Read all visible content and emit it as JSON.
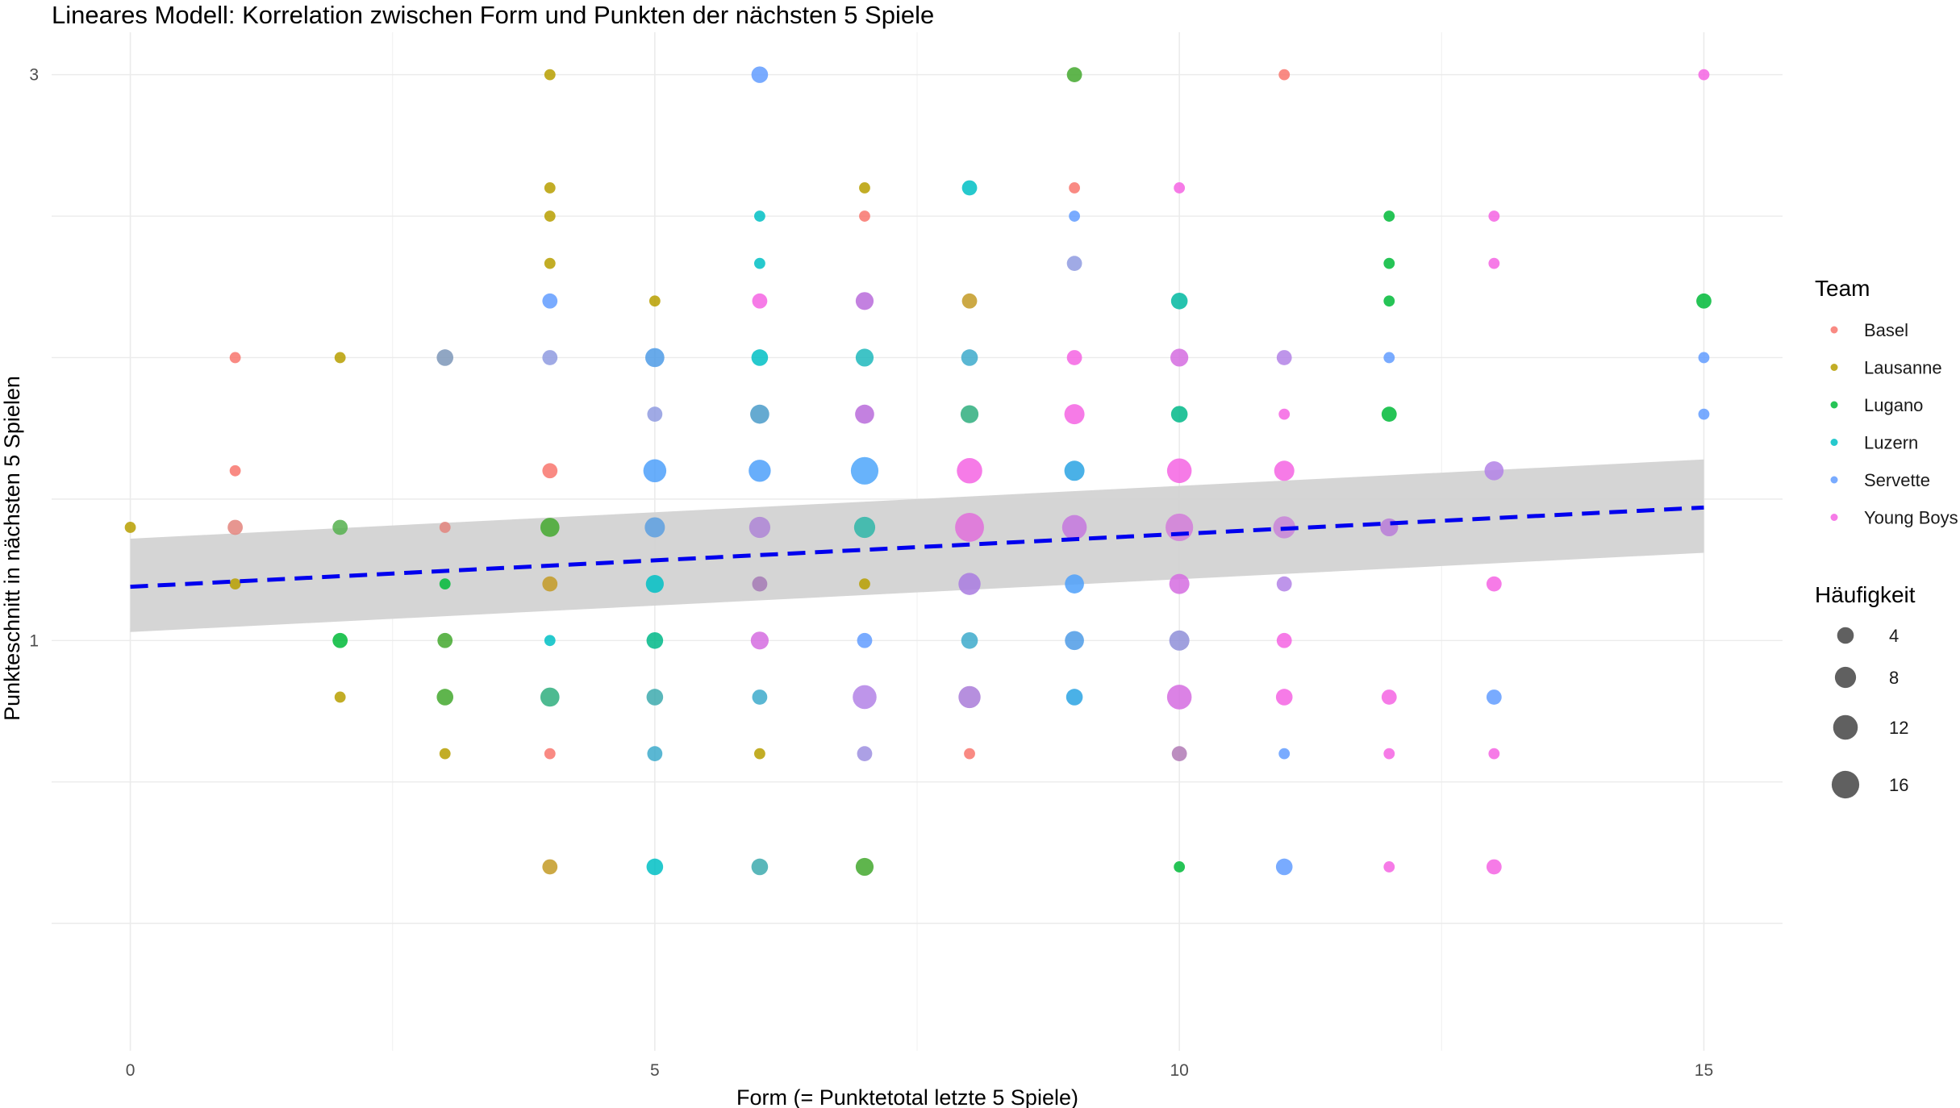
{
  "chart_data": {
    "type": "scatter",
    "title": "Lineares Modell: Korrelation zwischen Form und Punkten der nächsten 5 Spiele",
    "xlabel": "Form (= Punktetotal letzte 5 Spiele)",
    "ylabel": "Punkteschnitt in nächsten 5 Spielen",
    "xlim": [
      -0.75,
      15.75
    ],
    "ylim": [
      -0.45,
      3.15
    ],
    "xticks": [
      {
        "v": 0,
        "label": "0"
      },
      {
        "v": 5,
        "label": "5"
      },
      {
        "v": 10,
        "label": "10"
      },
      {
        "v": 15,
        "label": "15"
      }
    ],
    "yticks": [
      {
        "v": 1,
        "label": "1"
      },
      {
        "v": 3,
        "label": "3"
      }
    ],
    "x_minor_grid": [
      2.5,
      7.5,
      12.5
    ],
    "y_grid": [
      -0.5,
      0,
      0.5,
      1,
      1.5,
      2,
      2.5,
      3
    ],
    "grid": true,
    "legend_position": "right",
    "team_legend": {
      "title": "Team",
      "entries": [
        {
          "name": "Basel",
          "color": "#F8766D"
        },
        {
          "name": "Lausanne",
          "color": "#B79F00"
        },
        {
          "name": "Lugano",
          "color": "#00BA38"
        },
        {
          "name": "Luzern",
          "color": "#00BFC4"
        },
        {
          "name": "Servette",
          "color": "#619CFF"
        },
        {
          "name": "Young Boys",
          "color": "#F564E3"
        }
      ]
    },
    "size_legend": {
      "title": "Häufigkeit",
      "entries": [
        {
          "value": 4,
          "label": "4"
        },
        {
          "value": 8,
          "label": "8"
        },
        {
          "value": 12,
          "label": "12"
        },
        {
          "value": 16,
          "label": "16"
        }
      ]
    },
    "regression": {
      "x": [
        0,
        15
      ],
      "y": [
        1.19,
        1.47
      ],
      "ci_lower": [
        1.03,
        1.31
      ],
      "ci_upper": [
        1.36,
        1.64
      ],
      "line_color": "#0000EE",
      "band_color": "#d3d3d3"
    },
    "points": [
      {
        "x": 4,
        "y": 3.0,
        "n": 1,
        "color": "#B79F00"
      },
      {
        "x": 6,
        "y": 3.0,
        "n": 4,
        "color": "#619CFF"
      },
      {
        "x": 9,
        "y": 3.0,
        "n": 3,
        "color": "#43A82E"
      },
      {
        "x": 11,
        "y": 3.0,
        "n": 1,
        "color": "#F8766D"
      },
      {
        "x": 15,
        "y": 3.0,
        "n": 1,
        "color": "#F564E3"
      },
      {
        "x": 4,
        "y": 2.6,
        "n": 1,
        "color": "#B79F00"
      },
      {
        "x": 7,
        "y": 2.6,
        "n": 1,
        "color": "#B79F00"
      },
      {
        "x": 8,
        "y": 2.6,
        "n": 3,
        "color": "#00BFC4"
      },
      {
        "x": 9,
        "y": 2.6,
        "n": 1,
        "color": "#F8766D"
      },
      {
        "x": 10,
        "y": 2.6,
        "n": 1,
        "color": "#F564E3"
      },
      {
        "x": 4,
        "y": 2.5,
        "n": 1,
        "color": "#B79F00"
      },
      {
        "x": 6,
        "y": 2.5,
        "n": 1,
        "color": "#00BFC4"
      },
      {
        "x": 7,
        "y": 2.5,
        "n": 1,
        "color": "#F8766D"
      },
      {
        "x": 9,
        "y": 2.5,
        "n": 1,
        "color": "#619CFF"
      },
      {
        "x": 12,
        "y": 2.5,
        "n": 1,
        "color": "#00BA38"
      },
      {
        "x": 13,
        "y": 2.5,
        "n": 1,
        "color": "#F564E3"
      },
      {
        "x": 4,
        "y": 2.333,
        "n": 1,
        "color": "#B79F00"
      },
      {
        "x": 6,
        "y": 2.333,
        "n": 1,
        "color": "#00BFC4"
      },
      {
        "x": 9,
        "y": 2.333,
        "n": 3,
        "color": "#8F9BE0"
      },
      {
        "x": 12,
        "y": 2.333,
        "n": 1,
        "color": "#00BA38"
      },
      {
        "x": 13,
        "y": 2.333,
        "n": 1,
        "color": "#F564E3"
      },
      {
        "x": 4,
        "y": 2.2,
        "n": 3,
        "color": "#619CFF"
      },
      {
        "x": 5,
        "y": 2.2,
        "n": 1,
        "color": "#B79F00"
      },
      {
        "x": 6,
        "y": 2.2,
        "n": 3,
        "color": "#F564E3"
      },
      {
        "x": 7,
        "y": 2.2,
        "n": 5,
        "color": "#B86BDB"
      },
      {
        "x": 8,
        "y": 2.2,
        "n": 3,
        "color": "#C39A25"
      },
      {
        "x": 10,
        "y": 2.2,
        "n": 4,
        "color": "#00B8A0"
      },
      {
        "x": 12,
        "y": 2.2,
        "n": 1,
        "color": "#00BA38"
      },
      {
        "x": 15,
        "y": 2.2,
        "n": 3,
        "color": "#00BA38"
      },
      {
        "x": 1,
        "y": 2.0,
        "n": 1,
        "color": "#F8766D"
      },
      {
        "x": 2,
        "y": 2.0,
        "n": 1,
        "color": "#B79F00"
      },
      {
        "x": 3,
        "y": 2.0,
        "n": 4,
        "color": "#7C96B8"
      },
      {
        "x": 4,
        "y": 2.0,
        "n": 3,
        "color": "#8F9BE0"
      },
      {
        "x": 5,
        "y": 2.0,
        "n": 6,
        "color": "#4D9BE6"
      },
      {
        "x": 6,
        "y": 2.0,
        "n": 4,
        "color": "#00BFC4"
      },
      {
        "x": 7,
        "y": 2.0,
        "n": 5,
        "color": "#1FB8BC"
      },
      {
        "x": 8,
        "y": 2.0,
        "n": 4,
        "color": "#3DAACB"
      },
      {
        "x": 9,
        "y": 2.0,
        "n": 3,
        "color": "#F564E3"
      },
      {
        "x": 10,
        "y": 2.0,
        "n": 5,
        "color": "#D56CE0"
      },
      {
        "x": 11,
        "y": 2.0,
        "n": 3,
        "color": "#B383E6"
      },
      {
        "x": 12,
        "y": 2.0,
        "n": 1,
        "color": "#619CFF"
      },
      {
        "x": 15,
        "y": 2.0,
        "n": 1,
        "color": "#619CFF"
      },
      {
        "x": 5,
        "y": 1.8,
        "n": 3,
        "color": "#8F9BE0"
      },
      {
        "x": 6,
        "y": 1.8,
        "n": 6,
        "color": "#4A9BC9"
      },
      {
        "x": 7,
        "y": 1.8,
        "n": 6,
        "color": "#B86BDB"
      },
      {
        "x": 8,
        "y": 1.8,
        "n": 5,
        "color": "#2FAE7E"
      },
      {
        "x": 9,
        "y": 1.8,
        "n": 7,
        "color": "#F564E3"
      },
      {
        "x": 10,
        "y": 1.8,
        "n": 4,
        "color": "#00B888"
      },
      {
        "x": 11,
        "y": 1.8,
        "n": 1,
        "color": "#F564E3"
      },
      {
        "x": 12,
        "y": 1.8,
        "n": 3,
        "color": "#00BA38"
      },
      {
        "x": 15,
        "y": 1.8,
        "n": 1,
        "color": "#619CFF"
      },
      {
        "x": 1,
        "y": 1.6,
        "n": 1,
        "color": "#F8766D"
      },
      {
        "x": 4,
        "y": 1.6,
        "n": 3,
        "color": "#F8766D"
      },
      {
        "x": 5,
        "y": 1.6,
        "n": 10,
        "color": "#4DA0FA"
      },
      {
        "x": 6,
        "y": 1.6,
        "n": 9,
        "color": "#4DA0FA"
      },
      {
        "x": 7,
        "y": 1.6,
        "n": 16,
        "color": "#4DA6FA"
      },
      {
        "x": 8,
        "y": 1.6,
        "n": 13,
        "color": "#F564E3"
      },
      {
        "x": 9,
        "y": 1.6,
        "n": 7,
        "color": "#2AA3E3"
      },
      {
        "x": 10,
        "y": 1.6,
        "n": 12,
        "color": "#F564E3"
      },
      {
        "x": 11,
        "y": 1.6,
        "n": 7,
        "color": "#F564E3"
      },
      {
        "x": 13,
        "y": 1.6,
        "n": 6,
        "color": "#B383E6"
      },
      {
        "x": 0,
        "y": 1.4,
        "n": 1,
        "color": "#B79F00"
      },
      {
        "x": 1,
        "y": 1.4,
        "n": 3,
        "color": "#E3847C"
      },
      {
        "x": 2,
        "y": 1.4,
        "n": 3,
        "color": "#55B04E"
      },
      {
        "x": 3,
        "y": 1.4,
        "n": 1,
        "color": "#E3847C"
      },
      {
        "x": 4,
        "y": 1.4,
        "n": 6,
        "color": "#43A82E"
      },
      {
        "x": 5,
        "y": 1.4,
        "n": 7,
        "color": "#5C9FE0"
      },
      {
        "x": 6,
        "y": 1.4,
        "n": 8,
        "color": "#AE85D6"
      },
      {
        "x": 7,
        "y": 1.4,
        "n": 8,
        "color": "#2EB6A8"
      },
      {
        "x": 8,
        "y": 1.4,
        "n": 18,
        "color": "#E06FDB"
      },
      {
        "x": 9,
        "y": 1.4,
        "n": 12,
        "color": "#C477DE"
      },
      {
        "x": 10,
        "y": 1.4,
        "n": 16,
        "color": "#D27CD9"
      },
      {
        "x": 11,
        "y": 1.4,
        "n": 9,
        "color": "#C884D8"
      },
      {
        "x": 12,
        "y": 1.4,
        "n": 5,
        "color": "#B97BD8"
      },
      {
        "x": 1,
        "y": 1.2,
        "n": 1,
        "color": "#B79F00"
      },
      {
        "x": 3,
        "y": 1.2,
        "n": 1,
        "color": "#00BA38"
      },
      {
        "x": 4,
        "y": 1.2,
        "n": 3,
        "color": "#C39A25"
      },
      {
        "x": 5,
        "y": 1.2,
        "n": 5,
        "color": "#00BFC4"
      },
      {
        "x": 6,
        "y": 1.2,
        "n": 3,
        "color": "#A57AB5"
      },
      {
        "x": 7,
        "y": 1.2,
        "n": 1,
        "color": "#B79F00"
      },
      {
        "x": 8,
        "y": 1.2,
        "n": 9,
        "color": "#A97BE0"
      },
      {
        "x": 9,
        "y": 1.2,
        "n": 6,
        "color": "#4DA0FA"
      },
      {
        "x": 10,
        "y": 1.2,
        "n": 7,
        "color": "#D56CE0"
      },
      {
        "x": 11,
        "y": 1.2,
        "n": 3,
        "color": "#B383E6"
      },
      {
        "x": 13,
        "y": 1.2,
        "n": 3,
        "color": "#F564E3"
      },
      {
        "x": 2,
        "y": 1.0,
        "n": 3,
        "color": "#00BA38"
      },
      {
        "x": 3,
        "y": 1.0,
        "n": 3,
        "color": "#43A82E"
      },
      {
        "x": 4,
        "y": 1.0,
        "n": 1,
        "color": "#00BFC4"
      },
      {
        "x": 5,
        "y": 1.0,
        "n": 4,
        "color": "#00B888"
      },
      {
        "x": 6,
        "y": 1.0,
        "n": 5,
        "color": "#D56CE0"
      },
      {
        "x": 7,
        "y": 1.0,
        "n": 3,
        "color": "#619CFF"
      },
      {
        "x": 8,
        "y": 1.0,
        "n": 4,
        "color": "#3DAACB"
      },
      {
        "x": 9,
        "y": 1.0,
        "n": 6,
        "color": "#4D9BE6"
      },
      {
        "x": 10,
        "y": 1.0,
        "n": 7,
        "color": "#8F8FD8"
      },
      {
        "x": 11,
        "y": 1.0,
        "n": 3,
        "color": "#F564E3"
      },
      {
        "x": 2,
        "y": 0.8,
        "n": 1,
        "color": "#B79F00"
      },
      {
        "x": 3,
        "y": 0.8,
        "n": 4,
        "color": "#43A82E"
      },
      {
        "x": 4,
        "y": 0.8,
        "n": 6,
        "color": "#2FAE7E"
      },
      {
        "x": 5,
        "y": 0.8,
        "n": 4,
        "color": "#3DAAAE"
      },
      {
        "x": 6,
        "y": 0.8,
        "n": 3,
        "color": "#3DAACB"
      },
      {
        "x": 7,
        "y": 0.8,
        "n": 11,
        "color": "#B383E6"
      },
      {
        "x": 8,
        "y": 0.8,
        "n": 9,
        "color": "#A97BD8"
      },
      {
        "x": 9,
        "y": 0.8,
        "n": 4,
        "color": "#2AA3E3"
      },
      {
        "x": 10,
        "y": 0.8,
        "n": 12,
        "color": "#D56CE0"
      },
      {
        "x": 11,
        "y": 0.8,
        "n": 4,
        "color": "#F564E3"
      },
      {
        "x": 12,
        "y": 0.8,
        "n": 3,
        "color": "#F564E3"
      },
      {
        "x": 13,
        "y": 0.8,
        "n": 3,
        "color": "#619CFF"
      },
      {
        "x": 3,
        "y": 0.6,
        "n": 1,
        "color": "#B79F00"
      },
      {
        "x": 4,
        "y": 0.6,
        "n": 1,
        "color": "#F8766D"
      },
      {
        "x": 5,
        "y": 0.6,
        "n": 3,
        "color": "#3DAACB"
      },
      {
        "x": 6,
        "y": 0.6,
        "n": 1,
        "color": "#B79F00"
      },
      {
        "x": 7,
        "y": 0.6,
        "n": 3,
        "color": "#9D8FE0"
      },
      {
        "x": 8,
        "y": 0.6,
        "n": 1,
        "color": "#F8766D"
      },
      {
        "x": 10,
        "y": 0.6,
        "n": 3,
        "color": "#B07AB5"
      },
      {
        "x": 11,
        "y": 0.6,
        "n": 1,
        "color": "#619CFF"
      },
      {
        "x": 12,
        "y": 0.6,
        "n": 1,
        "color": "#F564E3"
      },
      {
        "x": 13,
        "y": 0.6,
        "n": 1,
        "color": "#F564E3"
      },
      {
        "x": 4,
        "y": 0.2,
        "n": 3,
        "color": "#C39A25"
      },
      {
        "x": 5,
        "y": 0.2,
        "n": 4,
        "color": "#00BFC4"
      },
      {
        "x": 6,
        "y": 0.2,
        "n": 4,
        "color": "#3DAAAE"
      },
      {
        "x": 7,
        "y": 0.2,
        "n": 5,
        "color": "#43A82E"
      },
      {
        "x": 10,
        "y": 0.2,
        "n": 1,
        "color": "#00BA38"
      },
      {
        "x": 11,
        "y": 0.2,
        "n": 4,
        "color": "#619CFF"
      },
      {
        "x": 12,
        "y": 0.2,
        "n": 1,
        "color": "#F564E3"
      },
      {
        "x": 13,
        "y": 0.2,
        "n": 3,
        "color": "#F564E3"
      }
    ]
  }
}
